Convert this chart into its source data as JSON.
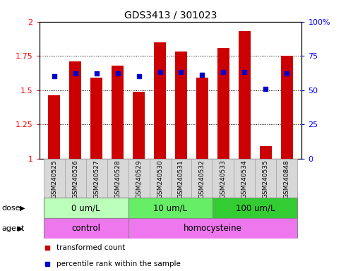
{
  "title": "GDS3413 / 301023",
  "samples": [
    "GSM240525",
    "GSM240526",
    "GSM240527",
    "GSM240528",
    "GSM240529",
    "GSM240530",
    "GSM240531",
    "GSM240532",
    "GSM240533",
    "GSM240534",
    "GSM240535",
    "GSM240848"
  ],
  "transformed_count": [
    1.46,
    1.71,
    1.59,
    1.68,
    1.49,
    1.85,
    1.78,
    1.59,
    1.81,
    1.93,
    1.09,
    1.75
  ],
  "percentile_rank": [
    60,
    62,
    62,
    62,
    60,
    63,
    63,
    61,
    63,
    63,
    51,
    62
  ],
  "ylim_left": [
    1.0,
    2.0
  ],
  "ylim_right": [
    0,
    100
  ],
  "yticks_left": [
    1.0,
    1.25,
    1.5,
    1.75,
    2.0
  ],
  "yticks_right": [
    0,
    25,
    50,
    75,
    100
  ],
  "ytick_labels_left": [
    "1",
    "1.25",
    "1.5",
    "1.75",
    "2"
  ],
  "ytick_labels_right": [
    "0",
    "25",
    "50",
    "75",
    "100%"
  ],
  "bar_color": "#cc0000",
  "dot_color": "#0000cc",
  "dose_groups": [
    {
      "label": "0 um/L",
      "start": 0,
      "end": 4,
      "color": "#bbffbb"
    },
    {
      "label": "10 um/L",
      "start": 4,
      "end": 8,
      "color": "#66ee66"
    },
    {
      "label": "100 um/L",
      "start": 8,
      "end": 12,
      "color": "#33cc33"
    }
  ],
  "agent_groups": [
    {
      "label": "control",
      "start": 0,
      "end": 4,
      "color": "#ee77ee"
    },
    {
      "label": "homocysteine",
      "start": 4,
      "end": 12,
      "color": "#ee77ee"
    }
  ],
  "legend_items": [
    {
      "label": "transformed count",
      "color": "#cc0000"
    },
    {
      "label": "percentile rank within the sample",
      "color": "#0000cc"
    }
  ],
  "bar_width": 0.55,
  "cell_color": "#d8d8d8",
  "cell_edge_color": "#aaaaaa"
}
